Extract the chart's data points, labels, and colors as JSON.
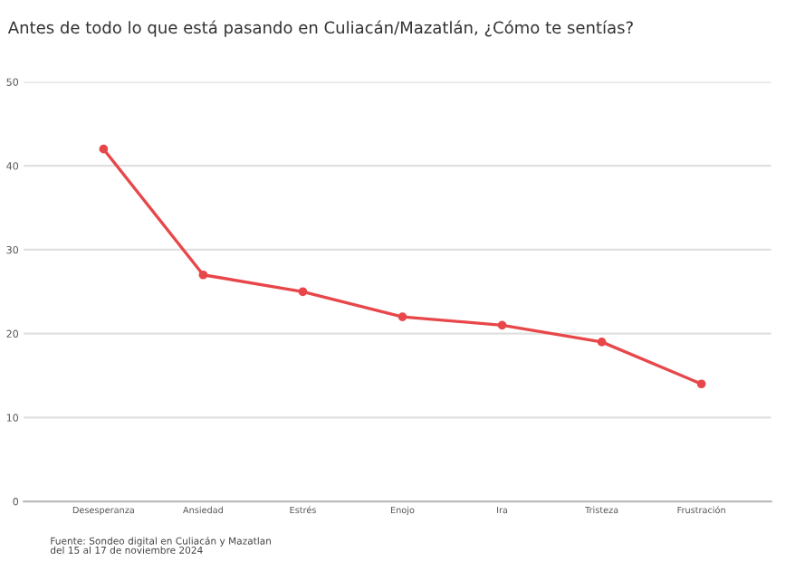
{
  "chart_data": {
    "type": "line",
    "title": "Antes de todo lo que está pasando en Culiacán/Mazatlán, ¿Cómo te sentías?",
    "categories": [
      "Desesperanza",
      "Ansiedad",
      "Estrés",
      "Enojo",
      "Ira",
      "Tristeza",
      "Frustración"
    ],
    "series": [
      {
        "color": "#e8474a",
        "values": [
          42,
          27,
          25,
          22,
          21,
          19,
          14
        ]
      }
    ],
    "ylim": [
      0,
      50
    ],
    "yticks": [
      0,
      10,
      20,
      30,
      40,
      50
    ],
    "grid": "y",
    "marker": "circle",
    "line_style": "solid",
    "annotations": [
      "Fuente: Sondeo digital en Culiacán y Mazatlan\ndel 15 al 17 de noviembre 2024"
    ]
  }
}
